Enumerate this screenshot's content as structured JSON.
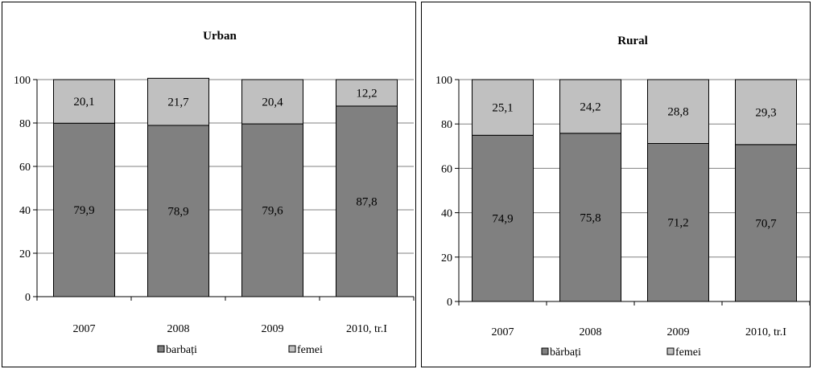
{
  "chart_data": [
    {
      "type": "bar",
      "stacked": true,
      "title": "Urban",
      "categories": [
        "2007",
        "2008",
        "2009",
        "2010, tr.I"
      ],
      "series": [
        {
          "name": "barbați",
          "values": [
            79.9,
            78.9,
            79.6,
            87.8
          ],
          "color": "#808080"
        },
        {
          "name": "femei",
          "values": [
            20.1,
            21.7,
            20.4,
            12.2
          ],
          "color": "#c0c0c0"
        }
      ],
      "ylim": [
        0,
        100
      ],
      "yticks": [
        "0",
        "20",
        "40",
        "60",
        "80",
        "100"
      ],
      "grid": true,
      "legend": "bottom"
    },
    {
      "type": "bar",
      "stacked": true,
      "title": "Rural",
      "categories": [
        "2007",
        "2008",
        "2009",
        "2010, tr.I"
      ],
      "series": [
        {
          "name": "bărbați",
          "values": [
            74.9,
            75.8,
            71.2,
            70.7
          ],
          "color": "#808080"
        },
        {
          "name": "femei",
          "values": [
            25.1,
            24.2,
            28.8,
            29.3
          ],
          "color": "#c0c0c0"
        }
      ],
      "ylim": [
        0,
        100
      ],
      "yticks": [
        "0",
        "20",
        "40",
        "60",
        "80",
        "100"
      ],
      "grid": true,
      "legend": "bottom"
    }
  ]
}
